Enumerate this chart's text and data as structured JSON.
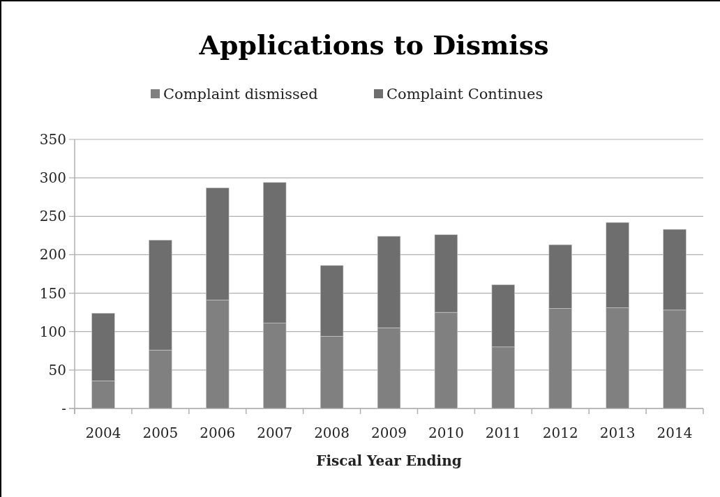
{
  "chart_data": {
    "type": "bar",
    "title": "Applications to Dismiss",
    "xlabel": "Fiscal Year Ending",
    "categories": [
      "2004",
      "2005",
      "2006",
      "2007",
      "2008",
      "2009",
      "2010",
      "2011",
      "2012",
      "2013",
      "2014"
    ],
    "series": [
      {
        "name": "Complaint dismissed",
        "color": "#808080",
        "values": [
          36,
          76,
          141,
          111,
          94,
          105,
          125,
          80,
          130,
          131,
          128
        ]
      },
      {
        "name": "Complaint Continues",
        "color": "#6e6e6e",
        "values": [
          88,
          143,
          146,
          183,
          92,
          119,
          101,
          81,
          83,
          111,
          105
        ]
      }
    ],
    "stacked": true,
    "ylim": [
      0,
      350
    ],
    "yticks": [
      {
        "value": 0,
        "label": "-"
      },
      50,
      100,
      150,
      200,
      250,
      300,
      350
    ],
    "grid": "y",
    "legend": "top"
  }
}
